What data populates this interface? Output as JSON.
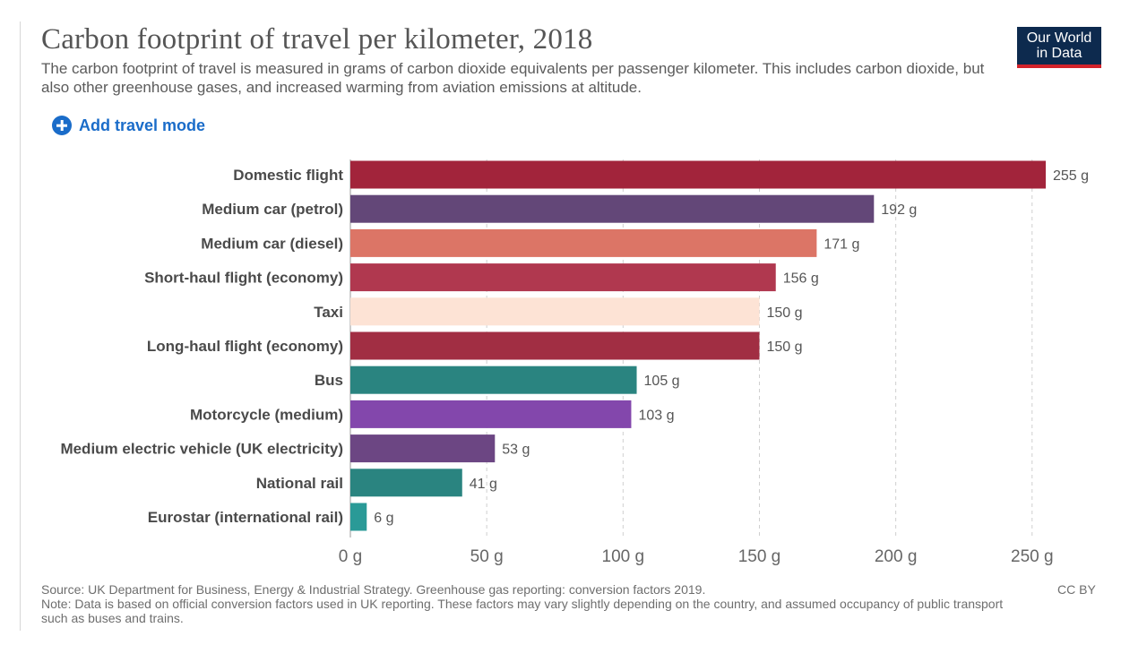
{
  "header": {
    "title": "Carbon footprint of travel per kilometer, 2018",
    "subtitle": "The carbon footprint of travel is measured in grams of carbon dioxide equivalents per passenger kilometer. This includes carbon dioxide, but also other greenhouse gases, and increased warming from aviation emissions at altitude.",
    "logo_line1": "Our World",
    "logo_line2": "in Data"
  },
  "controls": {
    "add_label": "Add travel mode",
    "add_icon": "plus-circle-icon"
  },
  "chart_data": {
    "type": "bar",
    "orientation": "horizontal",
    "title": "Carbon footprint of travel per kilometer, 2018",
    "categories": [
      "Domestic flight",
      "Medium car (petrol)",
      "Medium car (diesel)",
      "Short-haul flight (economy)",
      "Taxi",
      "Long-haul flight (economy)",
      "Bus",
      "Motorcycle (medium)",
      "Medium electric vehicle (UK electricity)",
      "National rail",
      "Eurostar (international rail)"
    ],
    "values": [
      255,
      192,
      171,
      156,
      150,
      150,
      105,
      103,
      53,
      41,
      6
    ],
    "value_labels": [
      "255 g",
      "192 g",
      "171 g",
      "156 g",
      "150 g",
      "150 g",
      "105 g",
      "103 g",
      "53 g",
      "41 g",
      "6 g"
    ],
    "colors": [
      "#a2243b",
      "#634778",
      "#dc7566",
      "#b0384f",
      "#fde3d5",
      "#a12e43",
      "#2a8480",
      "#8347ac",
      "#6c4683",
      "#2a8480",
      "#2a9a97"
    ],
    "xlim": [
      0,
      255
    ],
    "xticks": [
      0,
      50,
      100,
      150,
      200,
      250
    ],
    "xtick_labels": [
      "0 g",
      "50 g",
      "100 g",
      "150 g",
      "200 g",
      "250 g"
    ],
    "grid": "vertical dashed",
    "xlabel": "",
    "ylabel": ""
  },
  "footer": {
    "source": "Source: UK Department for Business, Energy & Industrial Strategy. Greenhouse gas reporting: conversion factors 2019.",
    "note": "Note: Data is based on official conversion factors used in UK reporting. These factors may vary slightly depending on the country, and assumed occupancy of public transport such as buses and trains.",
    "license": "CC BY"
  }
}
